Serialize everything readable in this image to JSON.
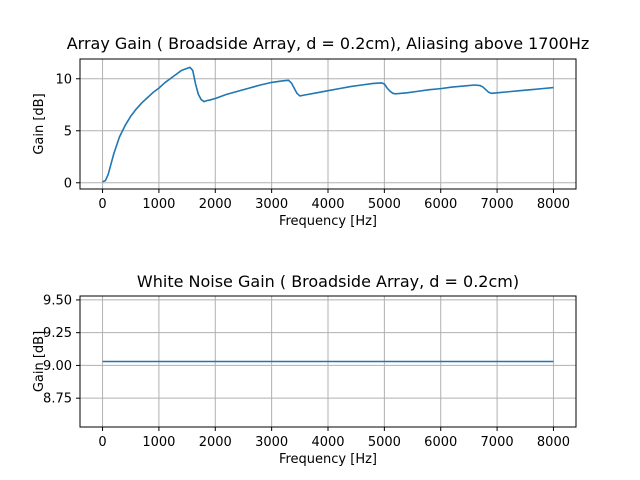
{
  "chart_data": [
    {
      "type": "line",
      "title": "Array Gain ( Broadside Array, d = 0.2cm), Aliasing above 1700Hz",
      "xlabel": "Frequency [Hz]",
      "ylabel": "Gain [dB]",
      "xlim": [
        -400,
        8400
      ],
      "ylim": [
        -0.6,
        11.9
      ],
      "xticks": [
        0,
        1000,
        2000,
        3000,
        4000,
        5000,
        6000,
        7000,
        8000
      ],
      "xtick_labels": [
        "0",
        "1000",
        "2000",
        "3000",
        "4000",
        "5000",
        "6000",
        "7000",
        "8000"
      ],
      "yticks": [
        0,
        5,
        10
      ],
      "ytick_labels": [
        "0",
        "5",
        "10"
      ],
      "grid": true,
      "color": "#1f77b4",
      "series": [
        {
          "x": [
            0,
            50,
            100,
            150,
            200,
            300,
            400,
            500,
            600,
            700,
            800,
            900,
            1000,
            1100,
            1200,
            1300,
            1400,
            1450,
            1500,
            1550,
            1600,
            1650,
            1700,
            1750,
            1800,
            1850,
            1900,
            2000,
            2200,
            2400,
            2600,
            2800,
            3000,
            3200,
            3300,
            3350,
            3400,
            3450,
            3500,
            3600,
            3800,
            4000,
            4200,
            4400,
            4600,
            4800,
            4950,
            5000,
            5050,
            5100,
            5150,
            5200,
            5400,
            5600,
            5800,
            6000,
            6200,
            6400,
            6600,
            6700,
            6750,
            6800,
            6850,
            6900,
            7000,
            7200,
            7400,
            7600,
            7800,
            8000
          ],
          "y": [
            0.1,
            0.2,
            0.8,
            1.8,
            2.8,
            4.4,
            5.5,
            6.4,
            7.1,
            7.7,
            8.2,
            8.7,
            9.1,
            9.6,
            10.0,
            10.4,
            10.8,
            10.9,
            11.0,
            11.1,
            10.8,
            9.5,
            8.5,
            8.0,
            7.8,
            7.9,
            7.95,
            8.1,
            8.5,
            8.8,
            9.1,
            9.4,
            9.65,
            9.8,
            9.85,
            9.6,
            9.1,
            8.6,
            8.35,
            8.45,
            8.65,
            8.85,
            9.05,
            9.25,
            9.4,
            9.55,
            9.6,
            9.5,
            9.1,
            8.8,
            8.6,
            8.55,
            8.65,
            8.8,
            8.95,
            9.05,
            9.2,
            9.3,
            9.4,
            9.35,
            9.2,
            8.95,
            8.7,
            8.6,
            8.65,
            8.75,
            8.85,
            8.95,
            9.05,
            9.15
          ]
        }
      ]
    },
    {
      "type": "line",
      "title": "White Noise Gain ( Broadside Array, d = 0.2cm)",
      "xlabel": "Frequency [Hz]",
      "ylabel": "Gain [dB]",
      "xlim": [
        -400,
        8400
      ],
      "ylim": [
        8.53,
        9.53
      ],
      "xticks": [
        0,
        1000,
        2000,
        3000,
        4000,
        5000,
        6000,
        7000,
        8000
      ],
      "xtick_labels": [
        "0",
        "1000",
        "2000",
        "3000",
        "4000",
        "5000",
        "6000",
        "7000",
        "8000"
      ],
      "yticks": [
        8.75,
        9.0,
        9.25,
        9.5
      ],
      "ytick_labels": [
        "8.75",
        "9.00",
        "9.25",
        "9.50"
      ],
      "grid": true,
      "color": "#1f77b4",
      "series": [
        {
          "x": [
            0,
            8000
          ],
          "y": [
            9.03,
            9.03
          ]
        }
      ]
    }
  ]
}
